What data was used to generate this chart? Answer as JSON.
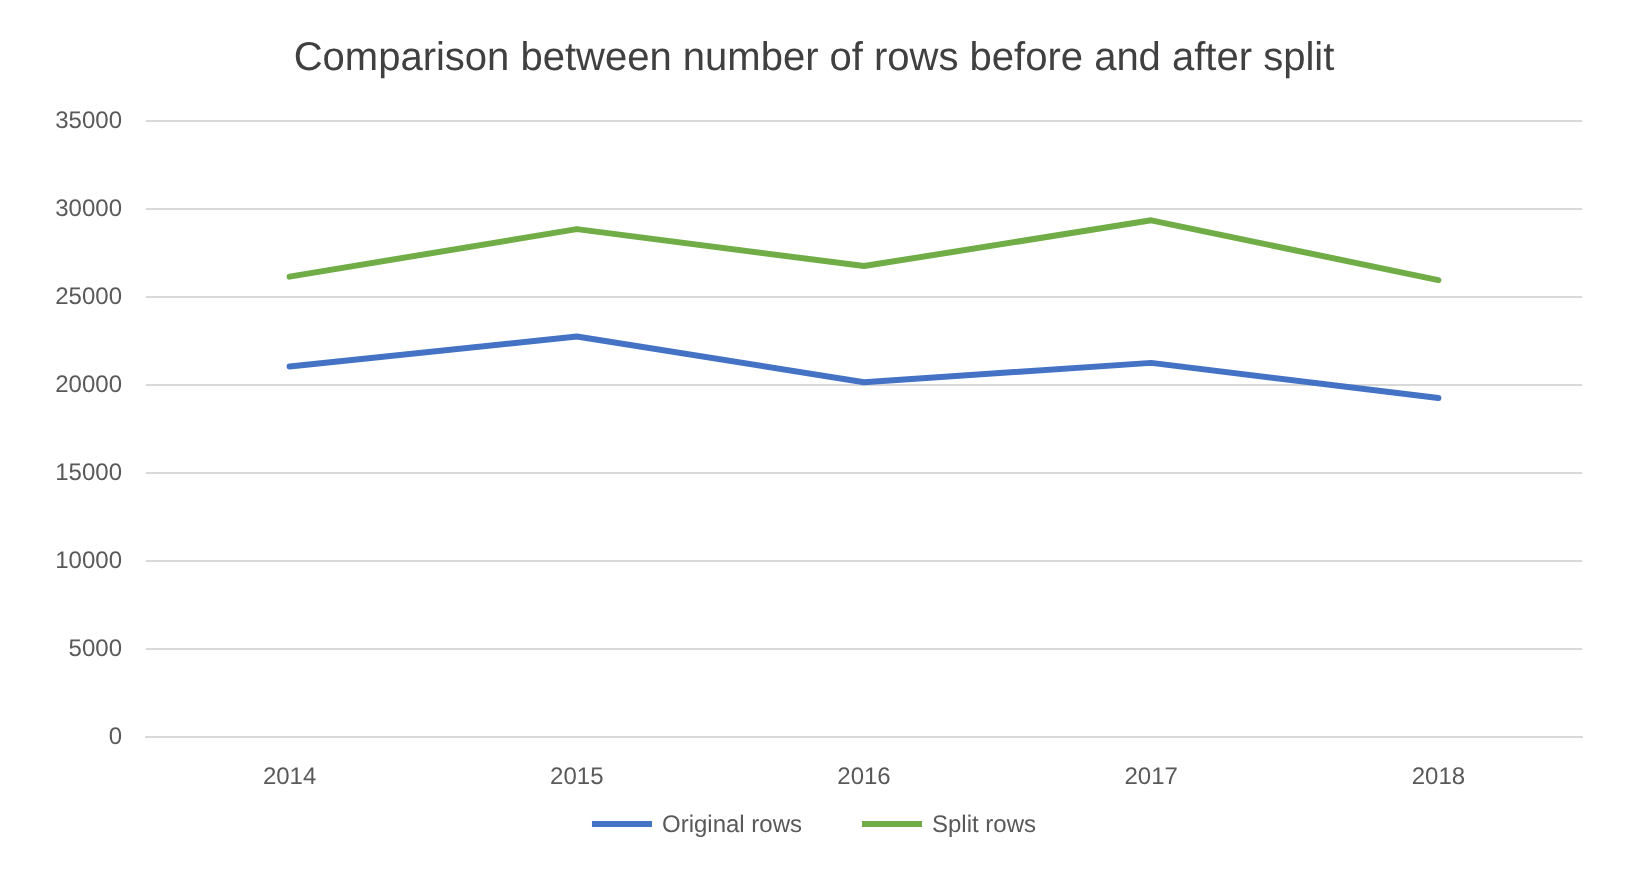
{
  "chart_data": {
    "type": "line",
    "title": "Comparison between number of rows before and after split",
    "categories": [
      "2014",
      "2015",
      "2016",
      "2017",
      "2018"
    ],
    "series": [
      {
        "name": "Original rows",
        "color": "#4472c4",
        "values": [
          21000,
          22700,
          20100,
          21200,
          19200
        ]
      },
      {
        "name": "Split rows",
        "color": "#70ad47",
        "values": [
          26100,
          28800,
          26700,
          29300,
          25900
        ]
      }
    ],
    "ylim": [
      0,
      35000
    ],
    "yticks": [
      0,
      5000,
      10000,
      15000,
      20000,
      25000,
      30000,
      35000
    ],
    "grid": "y",
    "legend": "bottom",
    "marker": "none",
    "line_style": "solid"
  }
}
